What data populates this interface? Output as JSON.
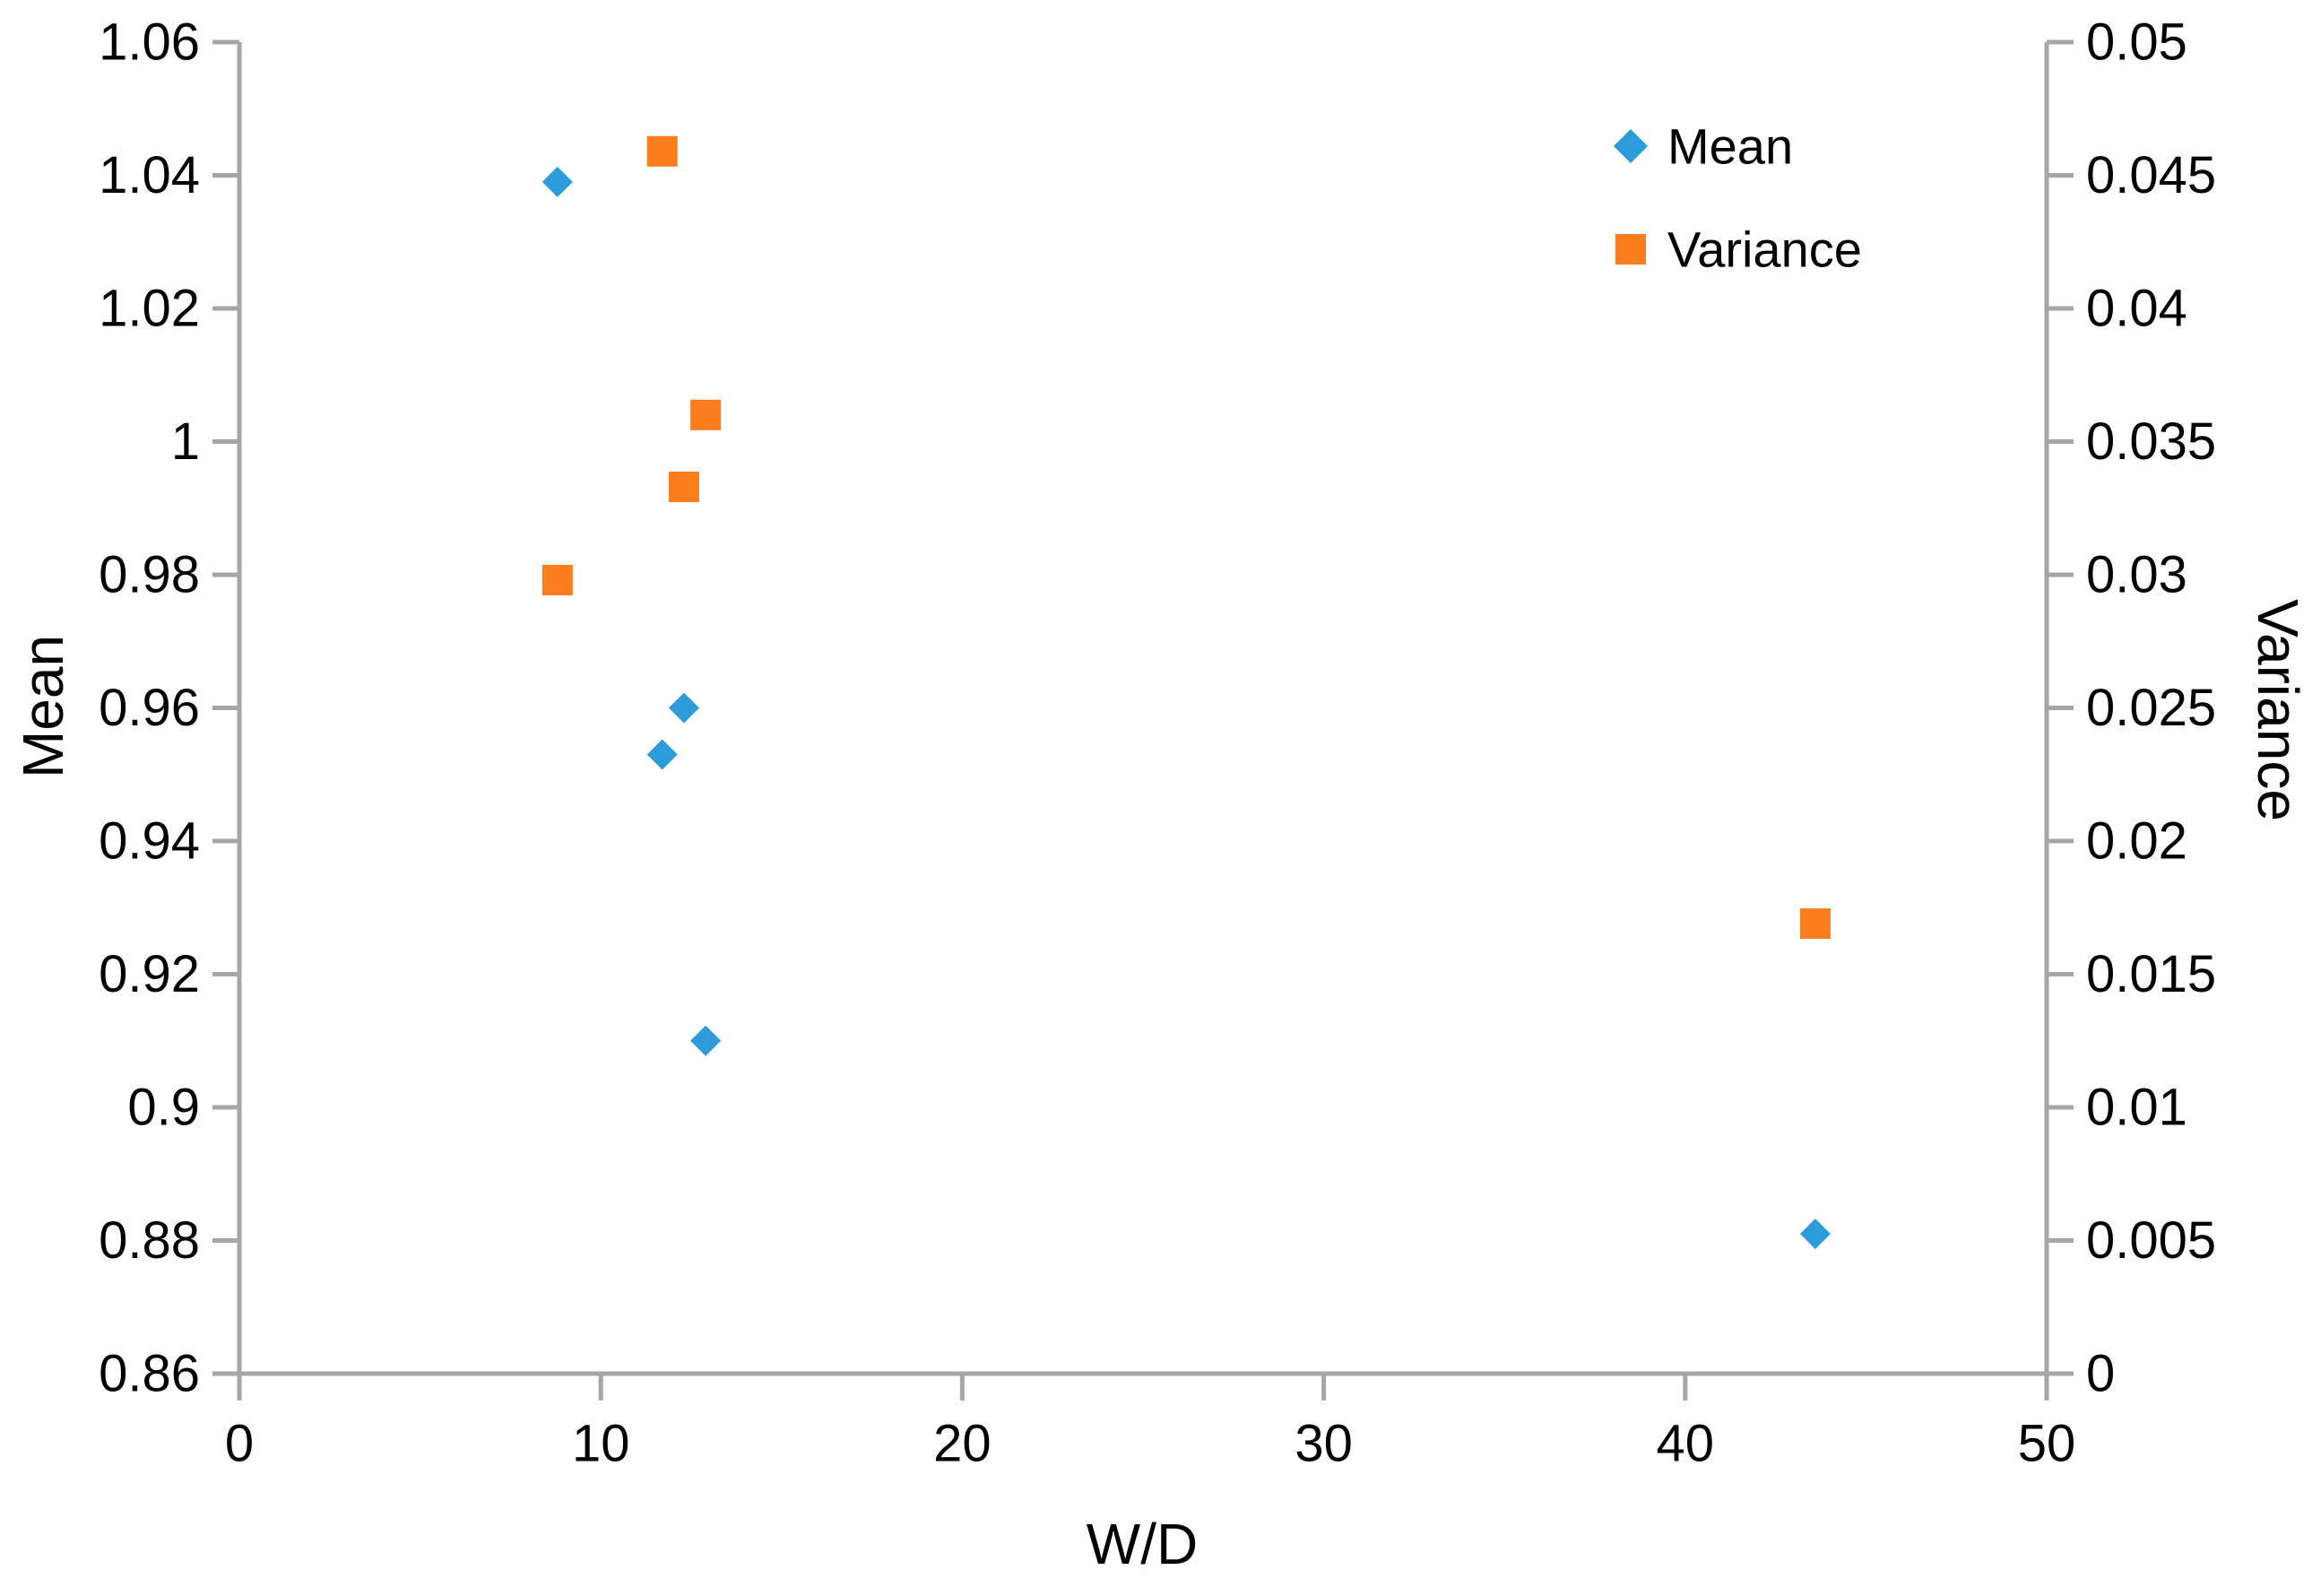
{
  "chart_data": {
    "type": "scatter",
    "x": [
      8.8,
      11.7,
      12.3,
      12.9,
      43.6
    ],
    "series": [
      {
        "name": "Mean",
        "axis": "left",
        "marker": "diamond",
        "color": "#2D9CDB",
        "values": [
          1.039,
          0.953,
          0.96,
          0.91,
          0.881
        ]
      },
      {
        "name": "Variance",
        "axis": "right",
        "marker": "square",
        "color": "#FA7D1E",
        "values": [
          0.0298,
          0.0459,
          0.0333,
          0.036,
          0.0169
        ]
      }
    ],
    "title": "",
    "xlabel": "W/D",
    "ylabel_left": "Mean",
    "ylabel_right": "Variance",
    "x_axis": {
      "min": 0,
      "max": 50,
      "ticks": [
        "0",
        "10",
        "20",
        "30",
        "40",
        "50"
      ]
    },
    "y_left": {
      "min": 0.86,
      "max": 1.06,
      "ticks": [
        "1.06",
        "1.04",
        "1.02",
        "1",
        "0.98",
        "0.96",
        "0.94",
        "0.92",
        "0.9",
        "0.88",
        "0.86"
      ]
    },
    "y_right": {
      "min": 0,
      "max": 0.05,
      "ticks": [
        "0.05",
        "0.045",
        "0.04",
        "0.035",
        "0.03",
        "0.025",
        "0.02",
        "0.015",
        "0.01",
        "0.005",
        "0"
      ]
    },
    "legend": {
      "position": "top-right-inside",
      "entries": [
        "Mean",
        "Variance"
      ]
    },
    "grid": false,
    "axis_color": "#A6A6A6",
    "text_color": "#000000",
    "background_color": "#FFFFFF"
  }
}
